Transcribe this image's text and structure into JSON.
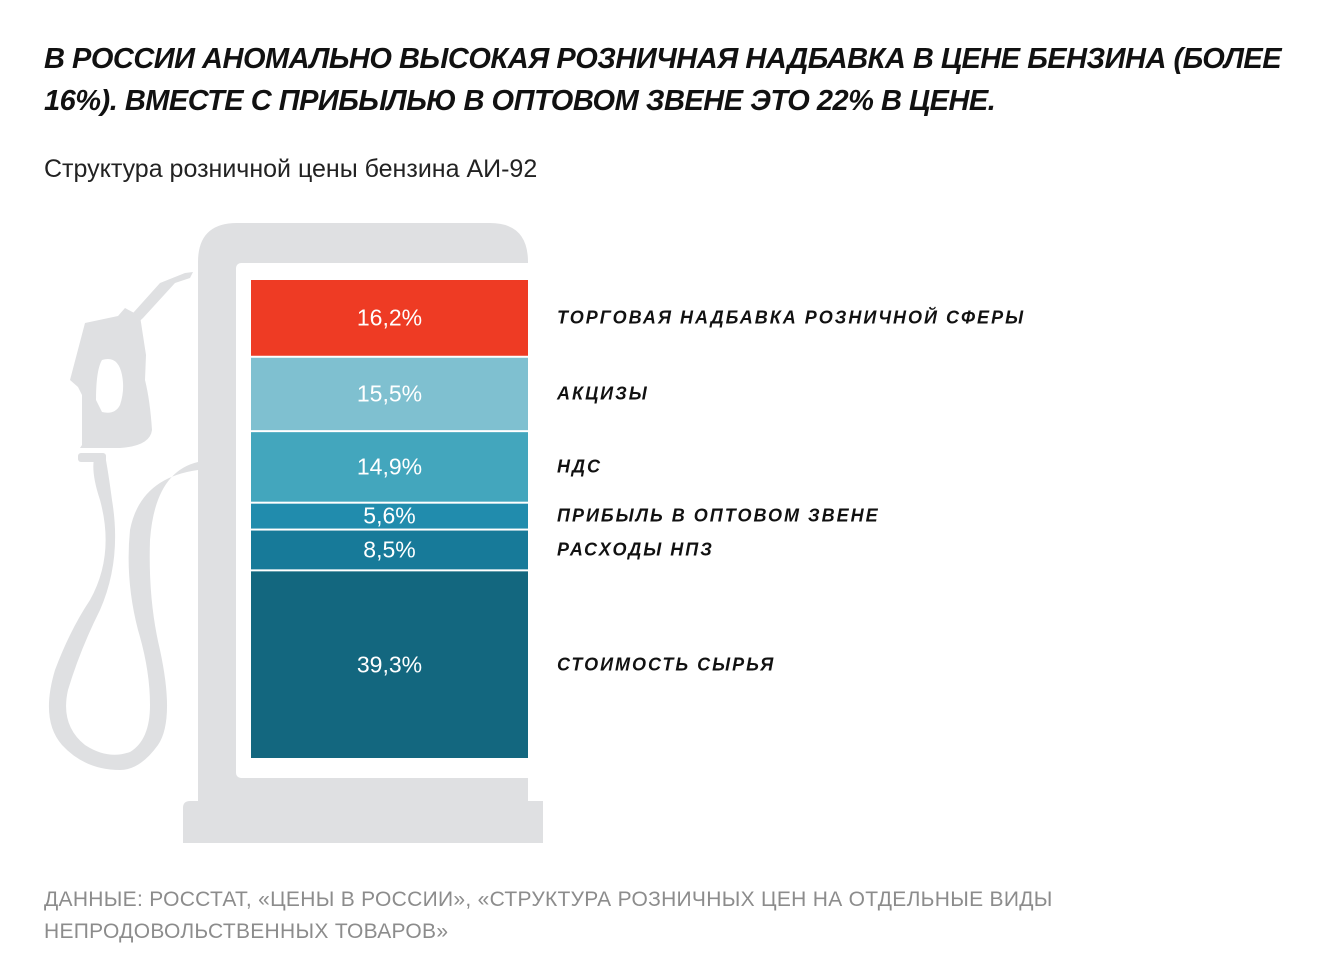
{
  "title": "В РОССИИ АНОМАЛЬНО ВЫСОКАЯ РОЗНИЧНАЯ НАДБАВКА В ЦЕНЕ БЕНЗИНА (БОЛЕЕ 16%). ВМЕСТЕ С ПРИБЫЛЬЮ В ОПТОВОМ ЗВЕНЕ ЭТО 22% В ЦЕНЕ.",
  "subtitle": "Структура розничной цены бензина АИ-92",
  "source": "ДАННЫЕ: РОССТАТ, «ЦЕНЫ В РОССИИ», «СТРУКТУРА РОЗНИЧНЫХ ЦЕН НА ОТДЕЛЬНЫЕ ВИДЫ НЕПРОДОВОЛЬСТВЕННЫХ ТОВАРОВ»",
  "chart_data": {
    "type": "bar",
    "stacked": true,
    "unit": "%",
    "title": "Структура розничной цены бензина АИ-92",
    "segments": [
      {
        "name": "ТОРГОВАЯ НАДБАВКА РОЗНИЧНОЙ СФЕРЫ",
        "value": 16.2,
        "label": "16,2%",
        "color": "#ee3b24"
      },
      {
        "name": "АКЦИЗЫ",
        "value": 15.5,
        "label": "15,5%",
        "color": "#7fc0d0"
      },
      {
        "name": "НДС",
        "value": 14.9,
        "label": "14,9%",
        "color": "#43a6bd"
      },
      {
        "name": "ПРИБЫЛЬ В ОПТОВОМ ЗВЕНЕ",
        "value": 5.6,
        "label": "5,6%",
        "color": "#218cad"
      },
      {
        "name": "РАСХОДЫ НПЗ",
        "value": 8.5,
        "label": "8,5%",
        "color": "#177a99"
      },
      {
        "name": "СТОИМОСТЬ СЫРЬЯ",
        "value": 39.3,
        "label": "39,3%",
        "color": "#13677f"
      }
    ],
    "pump_color": "#dfe0e2"
  }
}
